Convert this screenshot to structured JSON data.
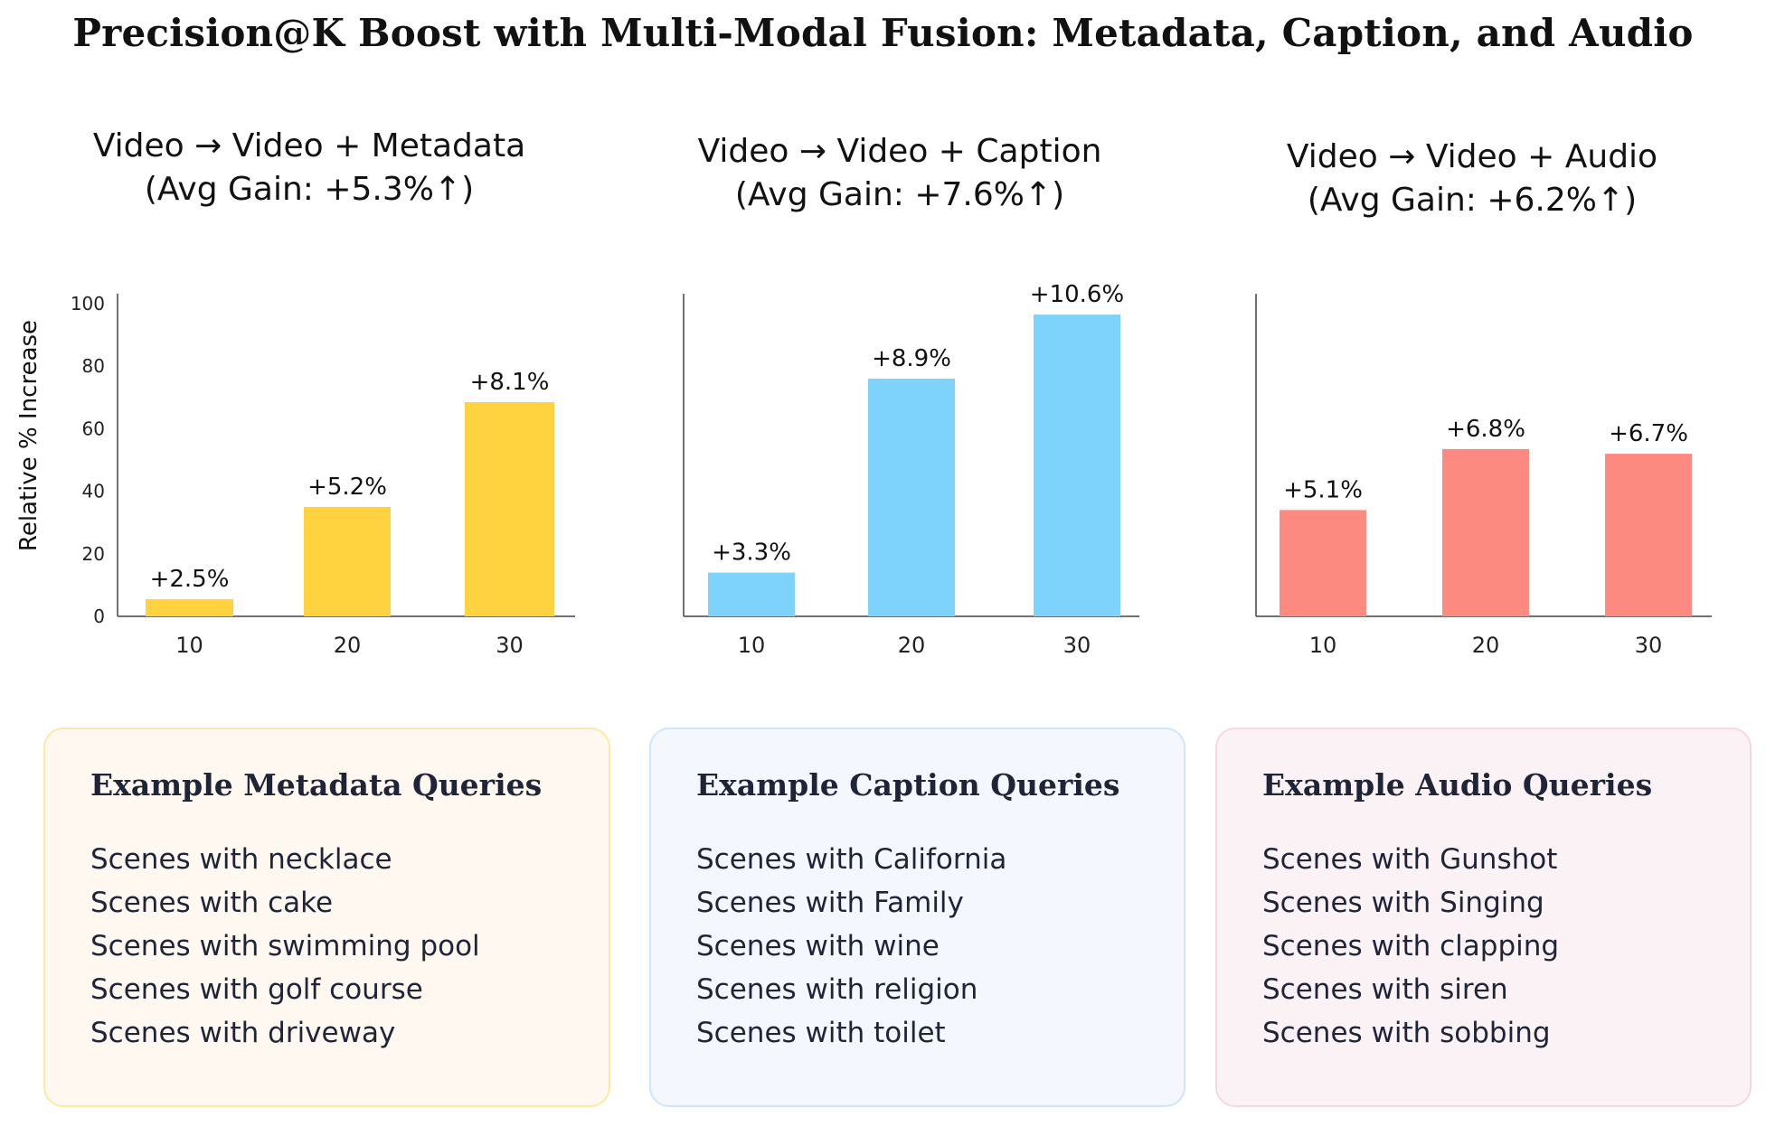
{
  "title": "Precision@K Boost with Multi-Modal Fusion: Metadata, Caption, and Audio",
  "chart_data": [
    {
      "type": "bar",
      "title_line1": "Video → Video + Metadata",
      "title_line2": "(Avg Gain: +5.3%↑)",
      "categories": [
        "10",
        "20",
        "30"
      ],
      "values": [
        5.5,
        35,
        68.5
      ],
      "value_labels": [
        "+2.5%",
        "+5.2%",
        "+8.1%"
      ],
      "ylabel": "Relative % Increase",
      "yticks": [
        "0",
        "20",
        "40",
        "60",
        "80",
        "100"
      ],
      "ylim": [
        0,
        100
      ],
      "color": "#ffd23f"
    },
    {
      "type": "bar",
      "title_line1": "Video → Video + Caption",
      "title_line2": "(Avg Gain: +7.6%↑)",
      "categories": [
        "10",
        "20",
        "30"
      ],
      "values": [
        14,
        76,
        96.5
      ],
      "value_labels": [
        "+3.3%",
        "+8.9%",
        "+10.6%"
      ],
      "ylim": [
        0,
        100
      ],
      "color": "#7dd3fc"
    },
    {
      "type": "bar",
      "title_line1": "Video → Video + Audio",
      "title_line2": "(Avg Gain: +6.2%↑)",
      "categories": [
        "10",
        "20",
        "30"
      ],
      "values": [
        34,
        53.5,
        52
      ],
      "value_labels": [
        "+5.1%",
        "+6.8%",
        "+6.7%"
      ],
      "ylim": [
        0,
        100
      ],
      "color": "#fc8a80"
    }
  ],
  "boxes": [
    {
      "title": "Example Metadata Queries",
      "items": [
        "Scenes with necklace",
        "Scenes with cake",
        "Scenes with swimming pool",
        "Scenes with golf course",
        "Scenes with driveway"
      ],
      "bg": "#fff8f1",
      "border": "#fde9a6"
    },
    {
      "title": "Example Caption Queries",
      "items": [
        "Scenes with California",
        "Scenes with Family",
        "Scenes with wine",
        "Scenes with religion",
        "Scenes with toilet"
      ],
      "bg": "#f4f8fe",
      "border": "#cfe6f7"
    },
    {
      "title": "Example Audio Queries",
      "items": [
        "Scenes with Gunshot",
        "Scenes with Singing",
        "Scenes with clapping",
        "Scenes with siren",
        "Scenes with sobbing"
      ],
      "bg": "#fbf2f5",
      "border": "#f6d8df"
    }
  ]
}
